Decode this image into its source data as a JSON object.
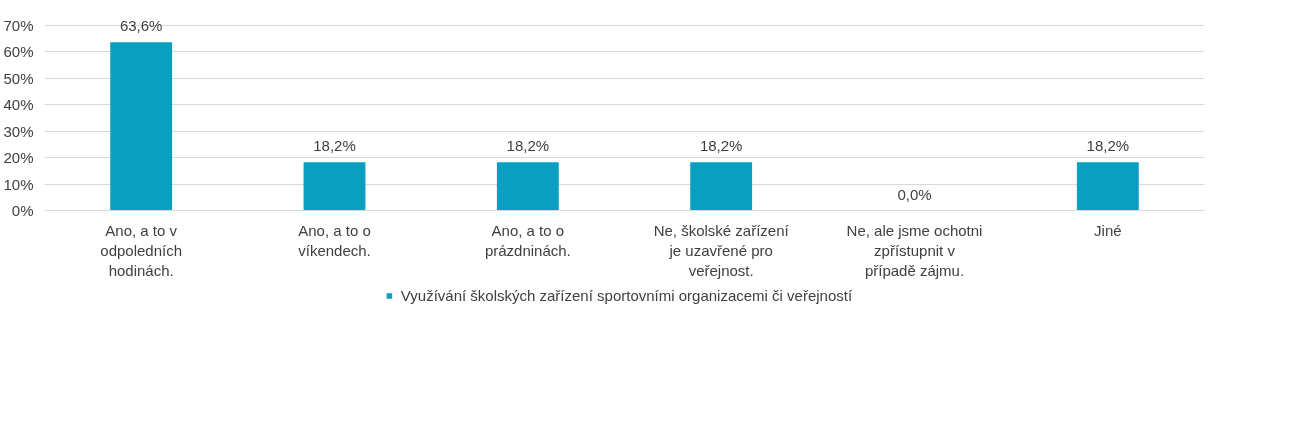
{
  "chart_data": {
    "type": "bar",
    "categories": [
      "Ano, a to v odpoledních hodinách.",
      "Ano, a to o víkendech.",
      "Ano, a to o prázdninách.",
      "Ne, školské zařízení je uzavřené pro veřejnost.",
      "Ne, ale jsme ochotni zpřístupnit v případě zájmu.",
      "Jiné"
    ],
    "series": [
      {
        "name": "Využívání školských zařízení sportovními organizacemi či veřejností",
        "color": "#0a9fc0",
        "values": [
          63.6,
          18.2,
          18.2,
          18.2,
          0.0,
          18.2
        ],
        "value_labels": [
          "63,6%",
          "18,2%",
          "18,2%",
          "18,2%",
          "0,0%",
          "18,2%"
        ]
      }
    ],
    "ylim": [
      0,
      70
    ],
    "yticks": [
      {
        "value": 0,
        "label": "0%"
      },
      {
        "value": 10,
        "label": "10%"
      },
      {
        "value": 20,
        "label": "20%"
      },
      {
        "value": 30,
        "label": "30%"
      },
      {
        "value": 40,
        "label": "40%"
      },
      {
        "value": 50,
        "label": "50%"
      },
      {
        "value": 60,
        "label": "60%"
      },
      {
        "value": 70,
        "label": "70%"
      }
    ],
    "grid": "y",
    "legend": "bottom"
  }
}
